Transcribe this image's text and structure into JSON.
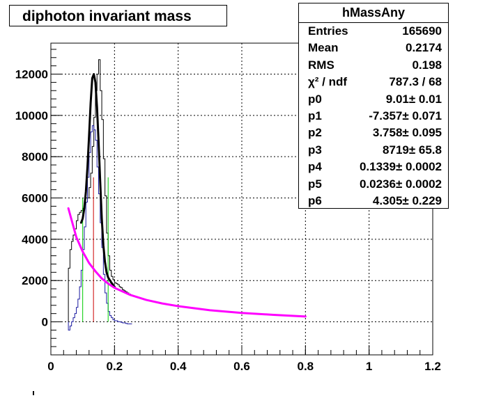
{
  "title": "diphoton invariant mass",
  "stats": {
    "name": "hMassAny",
    "rows": [
      {
        "label": "Entries",
        "value": "165690"
      },
      {
        "label": "Mean",
        "value": "0.2174"
      },
      {
        "label": "RMS",
        "value": "0.198"
      },
      {
        "label": "χ² / ndf",
        "value": "787.3 / 68"
      },
      {
        "label": "p0",
        "value": "9.01± 0.01"
      },
      {
        "label": "p1",
        "value": "-7.357± 0.071"
      },
      {
        "label": "p2",
        "value": "3.758± 0.095"
      },
      {
        "label": "p3",
        "value": "8719± 65.8"
      },
      {
        "label": "p4",
        "value": "0.1339± 0.0002"
      },
      {
        "label": "p5",
        "value": "0.0236± 0.0002"
      },
      {
        "label": "p6",
        "value": "4.305± 0.229"
      }
    ]
  },
  "chart_data": {
    "type": "line",
    "title": "diphoton invariant mass",
    "xlabel": "",
    "ylabel": "",
    "xlim": [
      0,
      1.2
    ],
    "ylim": [
      -1600,
      13500
    ],
    "grid": true,
    "xticks": [
      0,
      0.2,
      0.4,
      0.6,
      0.8,
      1,
      1.2
    ],
    "xtick_labels": [
      "0",
      "0.2",
      "0.4",
      "0.6",
      "0.8",
      "1",
      "1.2"
    ],
    "yticks": [
      0,
      2000,
      4000,
      6000,
      8000,
      10000,
      12000
    ],
    "ytick_labels": [
      "0",
      "2000",
      "4000",
      "6000",
      "8000",
      "10000",
      "12000"
    ],
    "colors": {
      "data": "#000000",
      "residual": "#1a1aa0",
      "fit": "#000000",
      "background": "#ff00ff",
      "mean_line": "#cc0000",
      "window_lines": "#00cc00",
      "sideband": "#a09a8c"
    },
    "histograms": [
      {
        "id": "data",
        "bin_width": 0.005,
        "x_start": 0.055,
        "values": [
          2600,
          3500,
          3900,
          4200,
          4500,
          4900,
          5200,
          5300,
          5400,
          5500,
          5700,
          5800,
          6000,
          6500,
          7200,
          8500,
          9900,
          11200,
          12000,
          12700,
          11200,
          9800,
          7900,
          6100,
          4300,
          3200,
          2500,
          2200,
          2050,
          1900,
          1850,
          1800,
          1700,
          1650,
          1550,
          1500,
          1450,
          1400,
          1350,
          1300
        ]
      },
      {
        "id": "residual",
        "bin_width": 0.005,
        "x_start": 0.055,
        "values": [
          -400,
          -200,
          0,
          200,
          400,
          700,
          1100,
          1700,
          2500,
          3500,
          4600,
          5800,
          7000,
          8200,
          9200,
          9500,
          9300,
          8800,
          7500,
          6200,
          4800,
          3600,
          2300,
          1400,
          900,
          500,
          300,
          200,
          100,
          50,
          50,
          0,
          0,
          -20,
          -50,
          -50,
          -80,
          -100,
          -100,
          -100
        ]
      }
    ],
    "series": [
      {
        "id": "fit",
        "points": [
          [
            0.095,
            4800
          ],
          [
            0.1,
            5000
          ],
          [
            0.105,
            5500
          ],
          [
            0.11,
            6300
          ],
          [
            0.115,
            7500
          ],
          [
            0.12,
            9000
          ],
          [
            0.125,
            10600
          ],
          [
            0.13,
            11800
          ],
          [
            0.135,
            12000
          ],
          [
            0.14,
            11600
          ],
          [
            0.145,
            10400
          ],
          [
            0.15,
            8700
          ],
          [
            0.155,
            6800
          ],
          [
            0.16,
            5000
          ],
          [
            0.165,
            3700
          ],
          [
            0.17,
            2900
          ],
          [
            0.175,
            2400
          ],
          [
            0.18,
            2150
          ],
          [
            0.19,
            1900
          ],
          [
            0.2,
            1700
          ]
        ]
      },
      {
        "id": "background",
        "points": [
          [
            0.055,
            5500
          ],
          [
            0.08,
            4100
          ],
          [
            0.1,
            3400
          ],
          [
            0.12,
            2850
          ],
          [
            0.14,
            2450
          ],
          [
            0.16,
            2100
          ],
          [
            0.18,
            1850
          ],
          [
            0.2,
            1650
          ],
          [
            0.25,
            1300
          ],
          [
            0.3,
            1060
          ],
          [
            0.35,
            890
          ],
          [
            0.4,
            760
          ],
          [
            0.5,
            560
          ],
          [
            0.6,
            430
          ],
          [
            0.7,
            340
          ],
          [
            0.8,
            260
          ]
        ]
      }
    ],
    "vertical_lines": [
      {
        "id": "mean_line",
        "x": 0.1339,
        "y_from": 0,
        "y_to": 7000
      },
      {
        "id": "window_lines",
        "x": 0.1,
        "y_from": 0,
        "y_to": 6000
      },
      {
        "id": "window_lines",
        "x": 0.18,
        "y_from": 0,
        "y_to": 7000
      }
    ]
  }
}
